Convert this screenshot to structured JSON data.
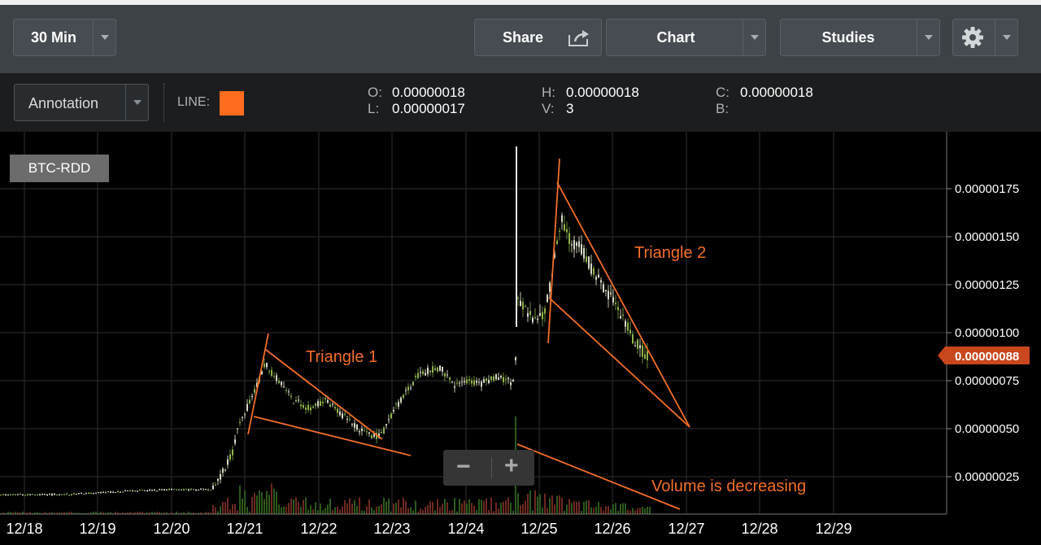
{
  "toolbar": {
    "interval_label": "30 Min",
    "share_label": "Share",
    "chart_label": "Chart",
    "studies_label": "Studies"
  },
  "subbar": {
    "annotation_label": "Annotation",
    "line_label": "LINE:",
    "line_color": "#ff6c1f",
    "ohlc": {
      "o_key": "O:",
      "o": "0.00000018",
      "l_key": "L:",
      "l": "0.00000017",
      "h_key": "H:",
      "h": "0.00000018",
      "v_key": "V:",
      "v": "3",
      "c_key": "C:",
      "c": "0.00000018",
      "b_key": "B:",
      "b": ""
    }
  },
  "chart": {
    "symbol": "BTC-RDD",
    "x_labels": [
      "12/18",
      "12/19",
      "12/20",
      "12/21",
      "12/22",
      "12/23",
      "12/24",
      "12/25",
      "12/26",
      "12/27",
      "12/28",
      "12/29"
    ],
    "y_labels": [
      "0.00000175",
      "0.00000150",
      "0.00000125",
      "0.00000100",
      "0.00000075",
      "0.00000050",
      "0.00000025"
    ],
    "current_price": "0.00000088",
    "price_tag_color": "#c8471c",
    "annotation_color": "#f26f2a",
    "annotations": [
      "Triangle 1",
      "Triangle 2",
      "Volume is decreasing"
    ],
    "zoom_out_symbol": "−",
    "zoom_in_symbol": "+"
  }
}
